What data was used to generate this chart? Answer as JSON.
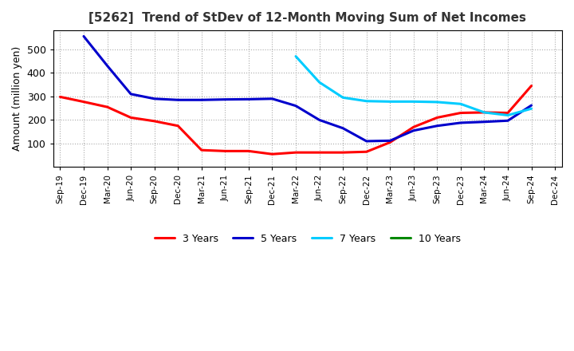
{
  "title": "[5262]  Trend of StDev of 12-Month Moving Sum of Net Incomes",
  "ylabel": "Amount (million yen)",
  "background_color": "#ffffff",
  "grid_color": "#bbbbbb",
  "ylim": [
    0,
    580
  ],
  "yticks": [
    100,
    200,
    300,
    400,
    500
  ],
  "series": {
    "3 Years": {
      "color": "#ff0000",
      "values": [
        298,
        277,
        255,
        210,
        195,
        175,
        72,
        68,
        68,
        55,
        62,
        62,
        62,
        65,
        105,
        170,
        210,
        230,
        232,
        230,
        345,
        null
      ]
    },
    "5 Years": {
      "color": "#0000cc",
      "values": [
        null,
        555,
        430,
        310,
        290,
        285,
        285,
        287,
        288,
        290,
        260,
        200,
        165,
        110,
        112,
        155,
        175,
        188,
        192,
        197,
        262,
        null
      ]
    },
    "7 Years": {
      "color": "#00ccff",
      "values": [
        null,
        null,
        null,
        null,
        null,
        null,
        null,
        null,
        null,
        null,
        470,
        360,
        295,
        280,
        278,
        278,
        276,
        268,
        232,
        220,
        248,
        null
      ]
    },
    "10 Years": {
      "color": "#008800",
      "values": [
        null,
        null,
        null,
        null,
        null,
        null,
        null,
        null,
        null,
        null,
        null,
        null,
        null,
        null,
        null,
        null,
        null,
        null,
        null,
        null,
        null,
        null
      ]
    }
  },
  "x_labels": [
    "Sep-19",
    "Dec-19",
    "Mar-20",
    "Jun-20",
    "Sep-20",
    "Dec-20",
    "Mar-21",
    "Jun-21",
    "Sep-21",
    "Dec-21",
    "Mar-22",
    "Jun-22",
    "Sep-22",
    "Dec-22",
    "Mar-23",
    "Jun-23",
    "Sep-23",
    "Dec-23",
    "Mar-24",
    "Jun-24",
    "Sep-24",
    "Dec-24"
  ],
  "legend_order": [
    "3 Years",
    "5 Years",
    "7 Years",
    "10 Years"
  ],
  "linewidth": 2.2
}
